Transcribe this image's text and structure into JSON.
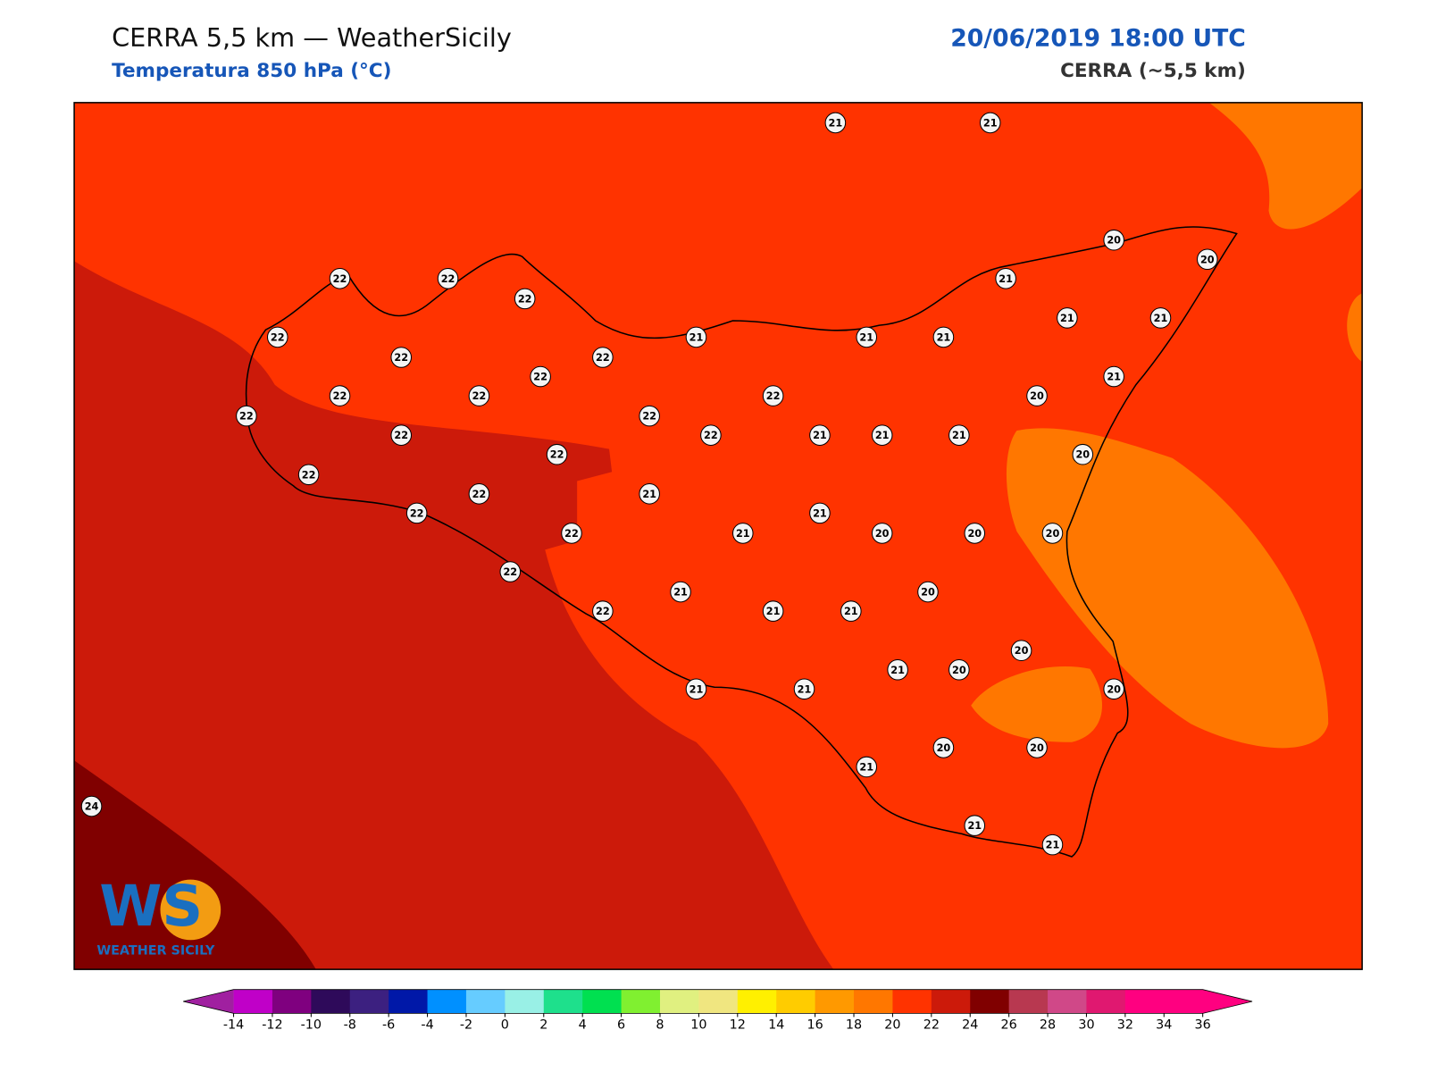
{
  "title": "CERRA 5,5 km — WeatherSicily",
  "subtitle": "Temperatura 850 hPa (°C)",
  "datetime": "20/06/2019 18:00 UTC",
  "model": "CERRA (~5,5 km)",
  "logo": {
    "letters": "WS",
    "text": "WEATHER SICILY"
  },
  "stations": [
    21,
    21,
    20,
    20,
    22,
    22,
    22,
    21,
    21,
    21,
    22,
    21,
    21,
    21,
    22,
    22,
    22,
    21,
    22,
    22,
    22,
    20,
    22,
    22,
    22,
    22,
    21,
    21,
    21,
    22,
    20,
    22,
    22,
    21,
    22,
    21,
    22,
    21,
    20,
    20,
    20,
    22,
    20,
    21,
    22,
    21,
    21,
    20,
    21,
    20,
    21,
    21,
    20,
    20,
    20,
    21,
    21,
    21,
    24
  ],
  "colorbar": {
    "ticks": [
      -14,
      -12,
      -10,
      -8,
      -6,
      -4,
      -2,
      0,
      2,
      4,
      6,
      8,
      10,
      12,
      14,
      16,
      18,
      20,
      22,
      24,
      26,
      28,
      30,
      32,
      34,
      36
    ],
    "colors": [
      "#c000c8",
      "#7f007f",
      "#2e0a5a",
      "#3c2080",
      "#0018a8",
      "#0090ff",
      "#66ccff",
      "#99f0e6",
      "#1ee08c",
      "#00e050",
      "#80f030",
      "#e0f080",
      "#f0e680",
      "#fff000",
      "#ffcc00",
      "#ff9900",
      "#ff7700",
      "#ff3300",
      "#cc1a0a",
      "#800000",
      "#b83850",
      "#d04888",
      "#e01870",
      "#ff0080",
      "#ff0080"
    ],
    "extend_colors": [
      "#a020a0",
      "#ff0080"
    ]
  }
}
